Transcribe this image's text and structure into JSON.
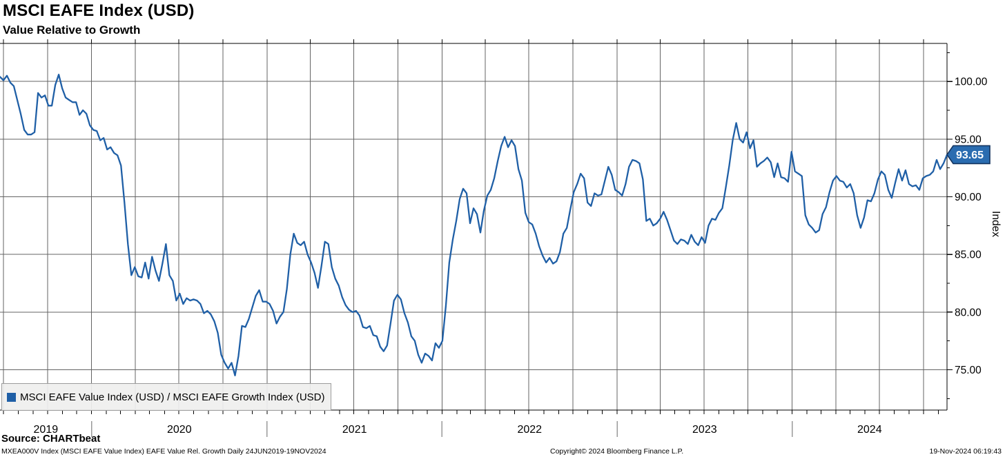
{
  "header": {
    "title": "MSCI EAFE Index (USD)",
    "subtitle": "Value Relative to Growth"
  },
  "chart_data": {
    "type": "line",
    "title": "MSCI EAFE Index (USD)",
    "subtitle": "Value Relative to Growth",
    "ylabel": "Index",
    "ylim": [
      71.5,
      103.3
    ],
    "grid": true,
    "legend_position": "bottom-left",
    "y_major_ticks": [
      75,
      80,
      85,
      90,
      95,
      100
    ],
    "y_tick_labels": [
      "75.00",
      "80.00",
      "85.00",
      "90.00",
      "95.00",
      "100.00"
    ],
    "y_minor_ticks": [
      72.5,
      77.5,
      82.5,
      87.5,
      92.5,
      97.5,
      102.5
    ],
    "x_year_labels": [
      "2019",
      "2020",
      "2021",
      "2022",
      "2023",
      "2024"
    ],
    "last_value": 93.65,
    "last_value_label": "93.65",
    "series": [
      {
        "name": "MSCI EAFE Value Index (USD) / MSCI EAFE Growth Index (USD)",
        "color": "#1f5fa6",
        "x_start": "2019-06-24",
        "x_end": "2024-11-19",
        "sampling": "evenly spaced (approx weekly) between x_start and x_end",
        "values": [
          100.4,
          100.1,
          100.5,
          99.9,
          99.6,
          98.4,
          97.2,
          95.8,
          95.4,
          95.4,
          95.6,
          99.0,
          98.6,
          98.8,
          97.9,
          97.9,
          99.7,
          100.6,
          99.4,
          98.6,
          98.4,
          98.2,
          98.2,
          97.1,
          97.5,
          97.2,
          96.2,
          95.8,
          95.7,
          94.9,
          95.1,
          94.1,
          94.3,
          93.8,
          93.6,
          92.7,
          89.5,
          85.9,
          83.2,
          83.9,
          83.1,
          83.0,
          84.3,
          82.9,
          84.8,
          83.6,
          82.7,
          84.2,
          85.9,
          83.2,
          82.7,
          81.0,
          81.6,
          80.7,
          81.2,
          81.0,
          81.1,
          81.0,
          80.7,
          79.9,
          80.1,
          79.8,
          79.2,
          78.2,
          76.3,
          75.6,
          75.1,
          75.6,
          74.5,
          76.2,
          78.8,
          78.7,
          79.4,
          80.4,
          81.4,
          81.9,
          80.9,
          80.9,
          80.7,
          80.1,
          79.0,
          79.6,
          80.0,
          82.0,
          85.0,
          86.8,
          86.0,
          85.8,
          86.1,
          85.0,
          84.3,
          83.4,
          82.1,
          84.0,
          86.1,
          85.9,
          83.9,
          82.9,
          82.3,
          81.3,
          80.6,
          80.2,
          80.0,
          80.1,
          79.7,
          78.7,
          78.6,
          78.8,
          78.0,
          77.9,
          77.0,
          76.6,
          77.1,
          79.0,
          81.0,
          81.5,
          81.1,
          79.9,
          79.1,
          77.9,
          77.5,
          76.3,
          75.6,
          76.4,
          76.2,
          75.8,
          77.3,
          76.9,
          77.5,
          80.5,
          84.3,
          86.3,
          87.9,
          89.8,
          90.7,
          90.3,
          87.7,
          89.0,
          88.5,
          86.9,
          88.8,
          90.1,
          90.6,
          91.6,
          93.1,
          94.4,
          95.2,
          94.3,
          94.9,
          94.4,
          92.4,
          91.4,
          88.6,
          87.8,
          87.6,
          86.8,
          85.7,
          84.9,
          84.3,
          84.7,
          84.2,
          84.4,
          85.2,
          86.8,
          87.3,
          88.9,
          90.4,
          91.1,
          92.0,
          91.6,
          89.5,
          89.2,
          90.3,
          90.1,
          90.2,
          91.4,
          92.6,
          91.9,
          90.6,
          90.4,
          90.1,
          91.1,
          92.6,
          93.2,
          93.1,
          92.9,
          91.5,
          87.9,
          88.1,
          87.5,
          87.7,
          88.1,
          88.7,
          88.0,
          87.1,
          86.2,
          85.9,
          86.3,
          86.2,
          85.9,
          86.7,
          86.1,
          85.8,
          86.5,
          86.0,
          87.5,
          88.1,
          88.0,
          88.6,
          89.0,
          90.8,
          92.7,
          94.9,
          96.4,
          95.0,
          94.7,
          95.6,
          94.2,
          94.9,
          92.6,
          92.9,
          93.1,
          93.4,
          93.0,
          91.7,
          92.9,
          91.7,
          91.6,
          91.3,
          93.9,
          92.2,
          92.0,
          91.8,
          88.4,
          87.6,
          87.3,
          86.9,
          87.1,
          88.5,
          89.1,
          90.4,
          91.4,
          91.8,
          91.4,
          91.3,
          90.8,
          91.1,
          90.3,
          88.4,
          87.3,
          88.2,
          89.7,
          89.6,
          90.3,
          91.5,
          92.2,
          91.9,
          90.6,
          89.9,
          91.2,
          92.4,
          91.4,
          92.3,
          91.1,
          90.9,
          91.0,
          90.6,
          91.6,
          91.8,
          91.9,
          92.2,
          93.2,
          92.4,
          92.9,
          93.65
        ]
      }
    ]
  },
  "legend": {
    "items": [
      {
        "label": "MSCI EAFE Value Index (USD) / MSCI EAFE Growth Index (USD)",
        "color": "#1f5fa6"
      }
    ]
  },
  "footer": {
    "source": "Source: CHARTbeat",
    "description": "MXEA000V Index (MSCI EAFE Value Index) EAFE Value Rel. Growth  Daily 24JUN2019-19NOV2024",
    "copyright": "Copyright© 2024 Bloomberg Finance L.P.",
    "timestamp": "19-Nov-2024 06:19:43"
  },
  "colors": {
    "line": "#1f5fa6",
    "badge_fill": "#2a6cb0",
    "badge_border": "#14345f",
    "badge_text": "#ffffff",
    "grid": "#636363",
    "axis": "#000000",
    "year_tick": "#999999",
    "legend_bg": "#efefee",
    "text": "#000000"
  }
}
